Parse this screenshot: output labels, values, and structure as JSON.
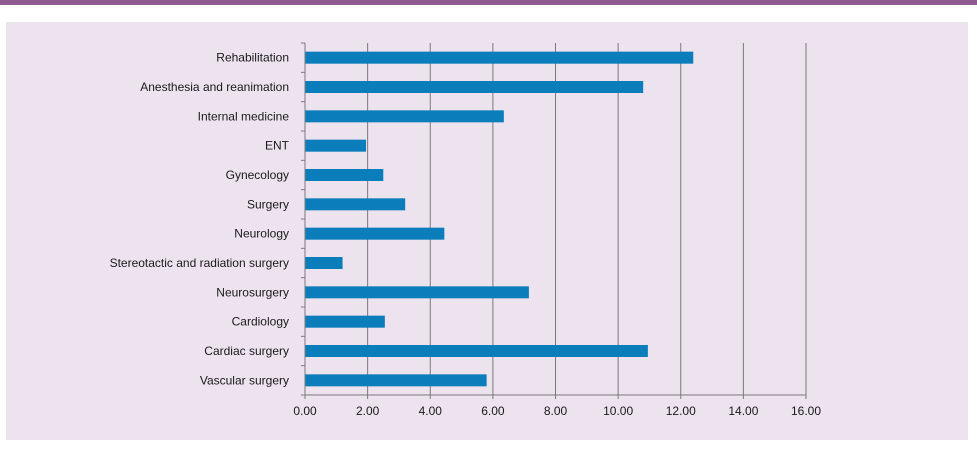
{
  "colors": {
    "top_bar": "#8e5a92",
    "panel_background": "#ece3ee",
    "bar": "#0c7dbb",
    "grid": "#7a7a7a",
    "axis": "#7a7a7a"
  },
  "chart_data": {
    "type": "bar",
    "orientation": "horizontal",
    "title": "",
    "xlabel": "",
    "ylabel": "",
    "categories": [
      "Rehabilitation",
      "Anesthesia and reanimation",
      "Internal medicine",
      "ENT",
      "Gynecology",
      "Surgery",
      "Neurology",
      "Stereotactic and radiation surgery",
      "Neurosurgery",
      "Cardiology",
      "Cardiac surgery",
      "Vascular surgery"
    ],
    "values": [
      12.4,
      10.8,
      6.35,
      1.95,
      2.5,
      3.2,
      4.45,
      1.2,
      7.15,
      2.55,
      10.95,
      5.8
    ],
    "xlim": [
      0,
      16
    ],
    "xticks": [
      "0.00",
      "2.00",
      "4.00",
      "6.00",
      "8.00",
      "10.00",
      "12.00",
      "14.00",
      "16.00"
    ],
    "grid": "vertical"
  }
}
